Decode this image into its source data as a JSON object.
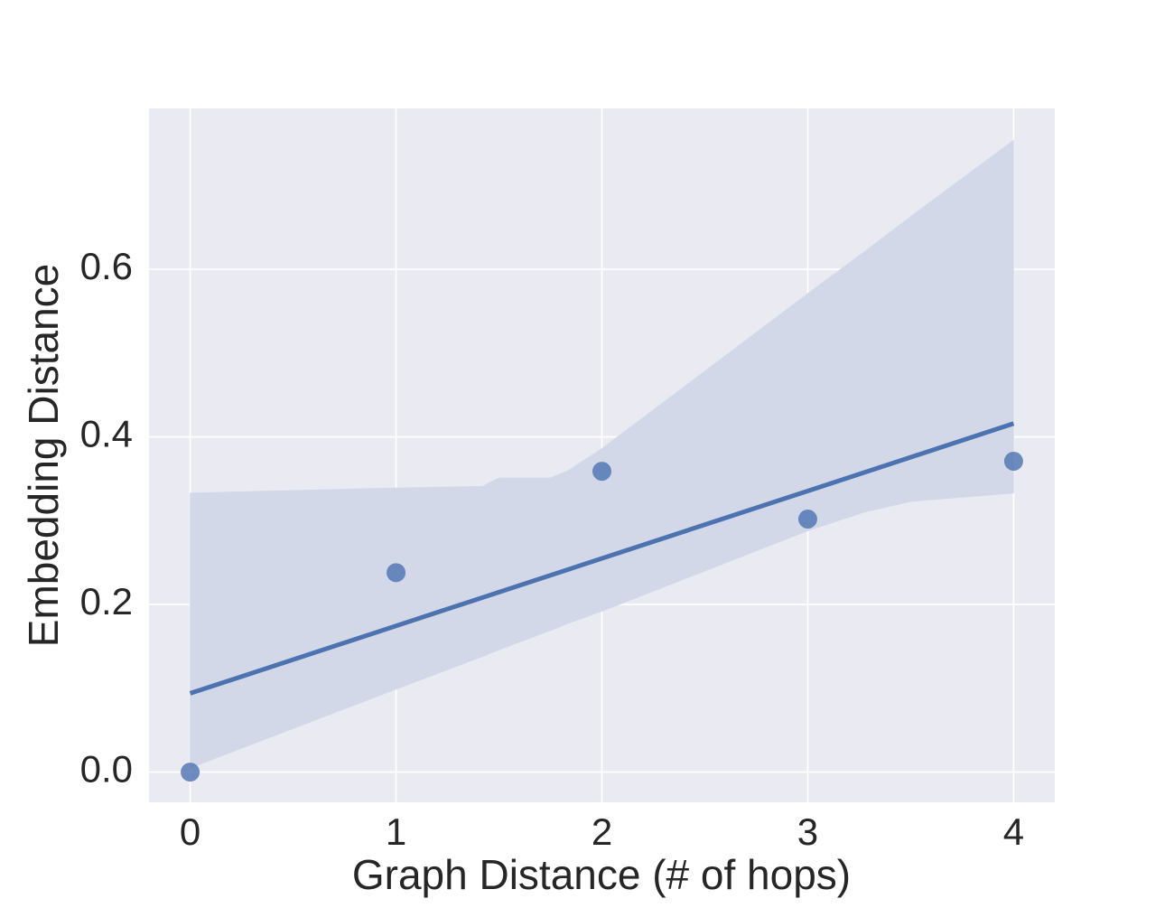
{
  "chart_data": {
    "type": "regplot",
    "xlabel": "Graph Distance (# of hops)",
    "ylabel": "Embedding Distance",
    "x": [
      0,
      1,
      2,
      3,
      4
    ],
    "values": [
      0.0,
      0.238,
      0.359,
      0.302,
      0.371
    ],
    "color": "#4c72b0",
    "fit": {
      "x": [
        0,
        4
      ],
      "values": [
        0.094,
        0.416
      ]
    },
    "ci": {
      "x": [
        0,
        1,
        1.42,
        1.5,
        1.75,
        1.83,
        2,
        3,
        3.27,
        3.5,
        4
      ],
      "upper": [
        0.333,
        0.339,
        0.341,
        0.351,
        0.351,
        0.359,
        0.386,
        0.571,
        0.62,
        0.663,
        0.754
      ],
      "lower": [
        0.005,
        0.099,
        0.138,
        0.146,
        0.169,
        0.177,
        0.192,
        0.288,
        0.31,
        0.323,
        0.333
      ],
      "color": "#d3d8e8"
    },
    "xlim": [
      -0.2,
      4.2
    ],
    "ylim": [
      -0.036,
      0.792
    ],
    "xticks": [
      0,
      1,
      2,
      3,
      4
    ],
    "yticks": [
      {
        "value": 0,
        "label": "0.0"
      },
      0.2,
      0.4,
      0.6
    ],
    "grid": true
  }
}
